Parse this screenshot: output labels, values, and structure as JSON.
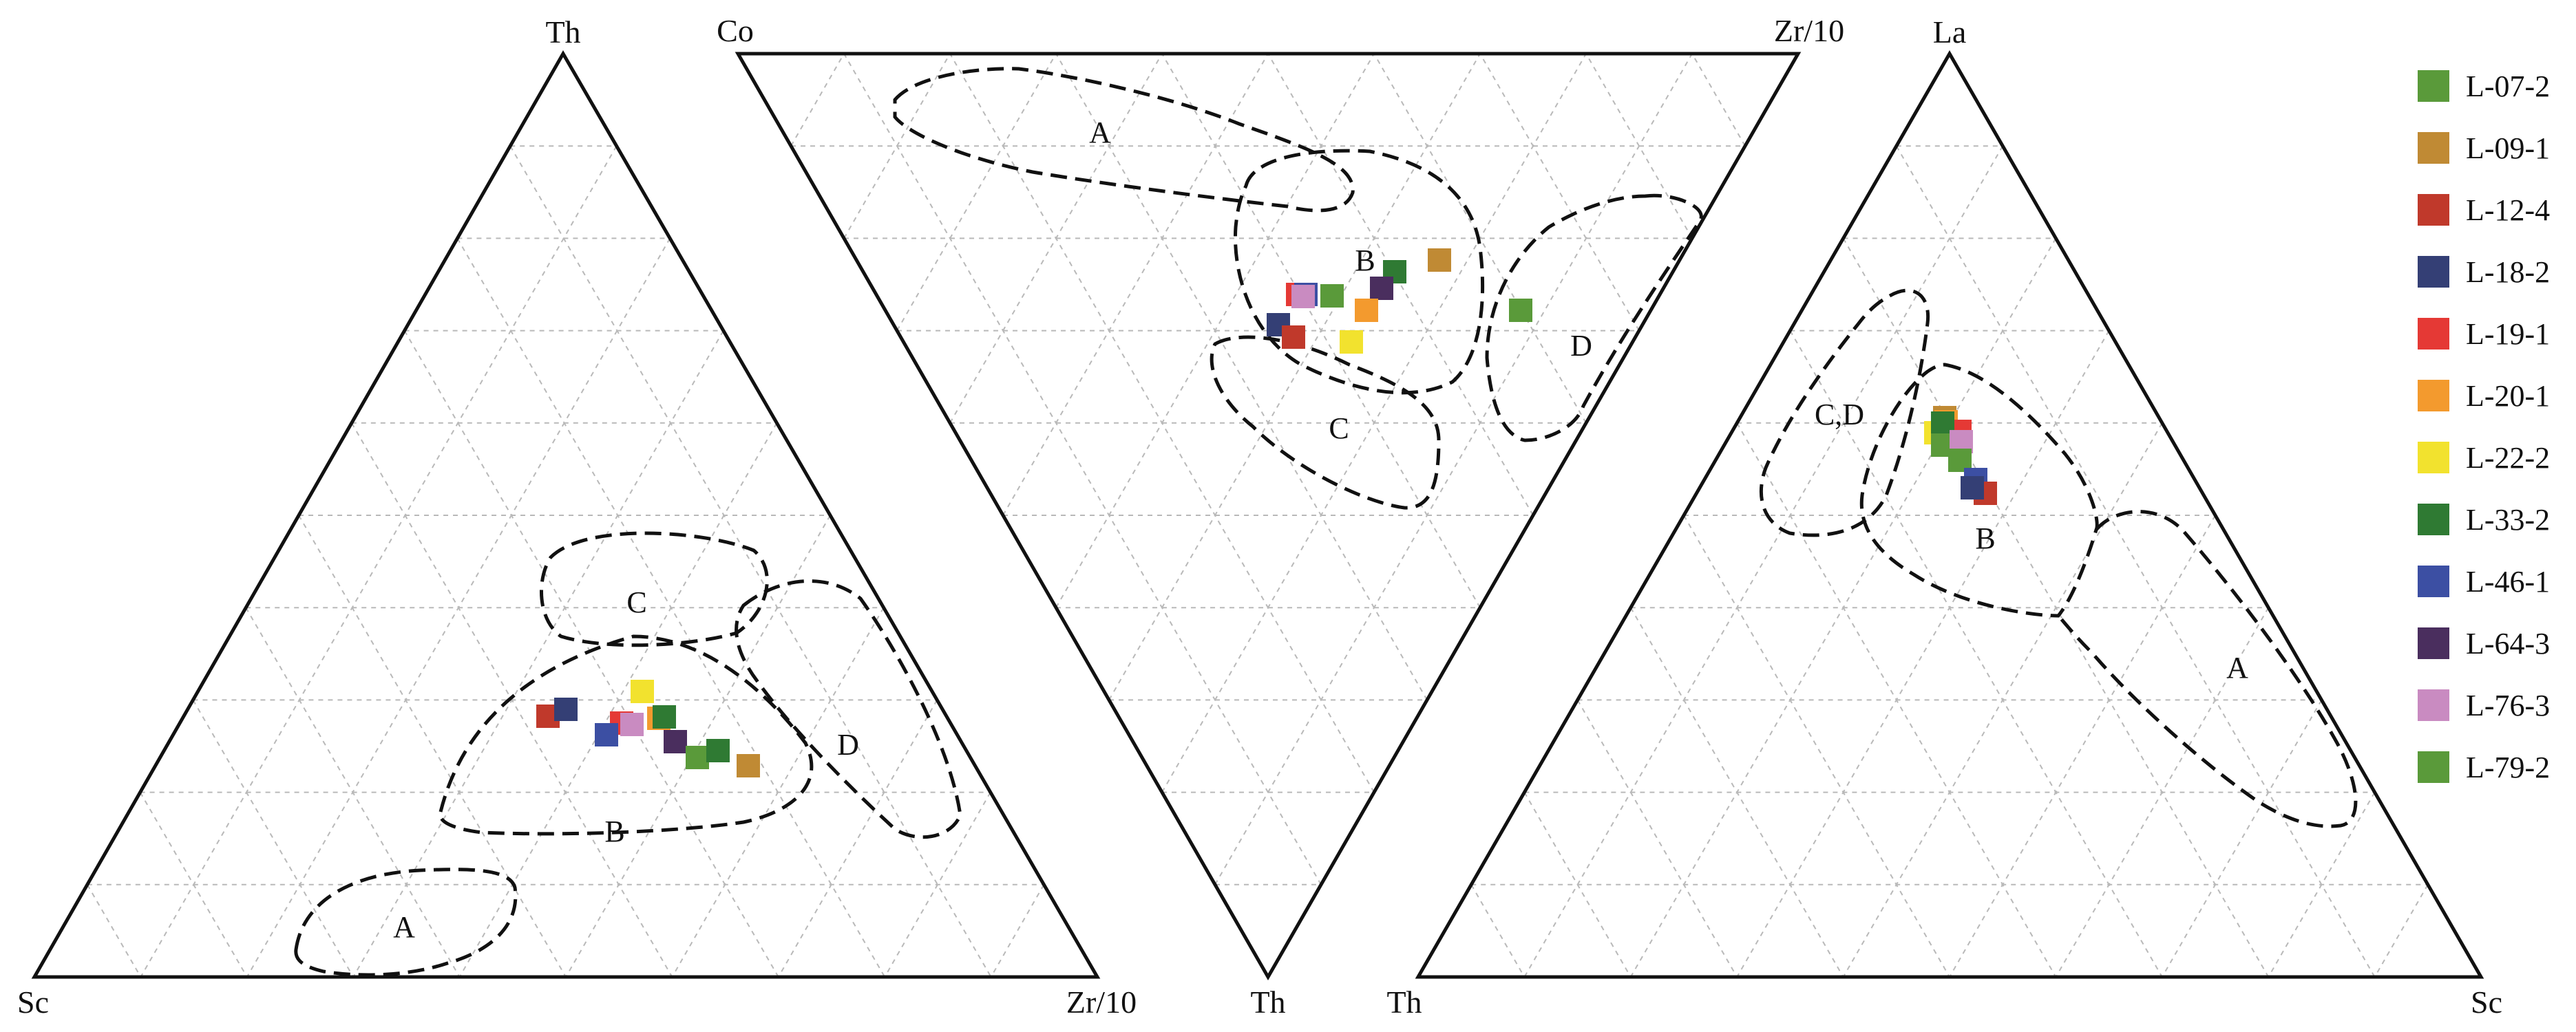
{
  "chart_data": [
    {
      "type": "scatter",
      "subtype": "ternary",
      "vertices": {
        "top": "Th",
        "bottom_left": "Sc",
        "bottom_right": "Zr/10"
      },
      "field_labels": [
        "A",
        "B",
        "C",
        "D"
      ],
      "grid": true,
      "tick_step_percent": 10
    },
    {
      "type": "scatter",
      "subtype": "ternary-inverted",
      "vertices": {
        "top_left": "Co",
        "top_right": "Zr/10",
        "bottom": "Th"
      },
      "field_labels": [
        "A",
        "B",
        "C",
        "D"
      ],
      "grid": true,
      "tick_step_percent": 10
    },
    {
      "type": "scatter",
      "subtype": "ternary",
      "vertices": {
        "top": "La",
        "bottom_left": "Th",
        "bottom_right": "Sc"
      },
      "field_labels": [
        "A",
        "B",
        "C,D"
      ],
      "grid": true,
      "tick_step_percent": 10
    }
  ],
  "legend": {
    "placement": "right",
    "items": [
      {
        "name": "L-07-2",
        "color": "#5a9a3a"
      },
      {
        "name": "L-09-1",
        "color": "#c08a34"
      },
      {
        "name": "L-12-4",
        "color": "#c0392b"
      },
      {
        "name": "L-18-2",
        "color": "#343f75"
      },
      {
        "name": "L-19-1",
        "color": "#e53935"
      },
      {
        "name": "L-20-1",
        "color": "#f39a2e"
      },
      {
        "name": "L-22-2",
        "color": "#f2e22e"
      },
      {
        "name": "L-33-2",
        "color": "#2f7a33"
      },
      {
        "name": "L-46-1",
        "color": "#3c4fa3"
      },
      {
        "name": "L-64-3",
        "color": "#4a2e5e"
      },
      {
        "name": "L-76-3",
        "color": "#c98bc1"
      },
      {
        "name": "L-79-2",
        "color": "#5a9a3a"
      }
    ]
  }
}
